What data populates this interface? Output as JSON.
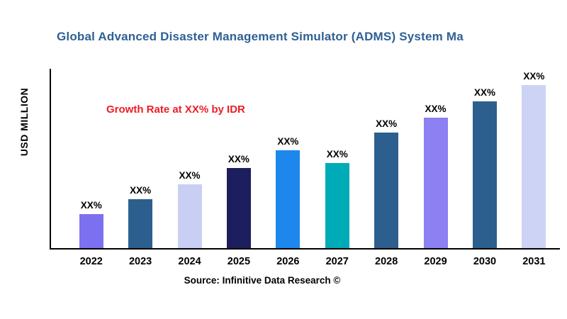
{
  "chart_data": {
    "type": "bar",
    "title": "Global Advanced Disaster Management Simulator (ADMS) System  Ma",
    "ylabel": "USD MILLION",
    "annotation": "Growth Rate at XX% by IDR",
    "source": "Source: Infinitive Data Research ©",
    "categories": [
      "2022",
      "2023",
      "2024",
      "2025",
      "2026",
      "2027",
      "2028",
      "2029",
      "2030",
      "2031"
    ],
    "values": [
      21,
      30,
      39,
      49,
      60,
      52,
      71,
      80,
      90,
      100
    ],
    "value_labels": [
      "XX%",
      "XX%",
      "XX%",
      "XX%",
      "XX%",
      "XX%",
      "XX%",
      "XX%",
      "XX%",
      "XX%"
    ],
    "ylim": [
      0,
      110
    ],
    "bar_colors": [
      "#7d70f0",
      "#2d5f8e",
      "#c9cff3",
      "#1c1e5e",
      "#1d87ee",
      "#00abb8",
      "#2d5f8e",
      "#8c80f2",
      "#2d5f8e",
      "#ccd3f5"
    ],
    "title_color": "#2e6094",
    "annotation_color": "#ee1c25",
    "axis_color": "#000000",
    "grid": "off",
    "legend": "none"
  }
}
